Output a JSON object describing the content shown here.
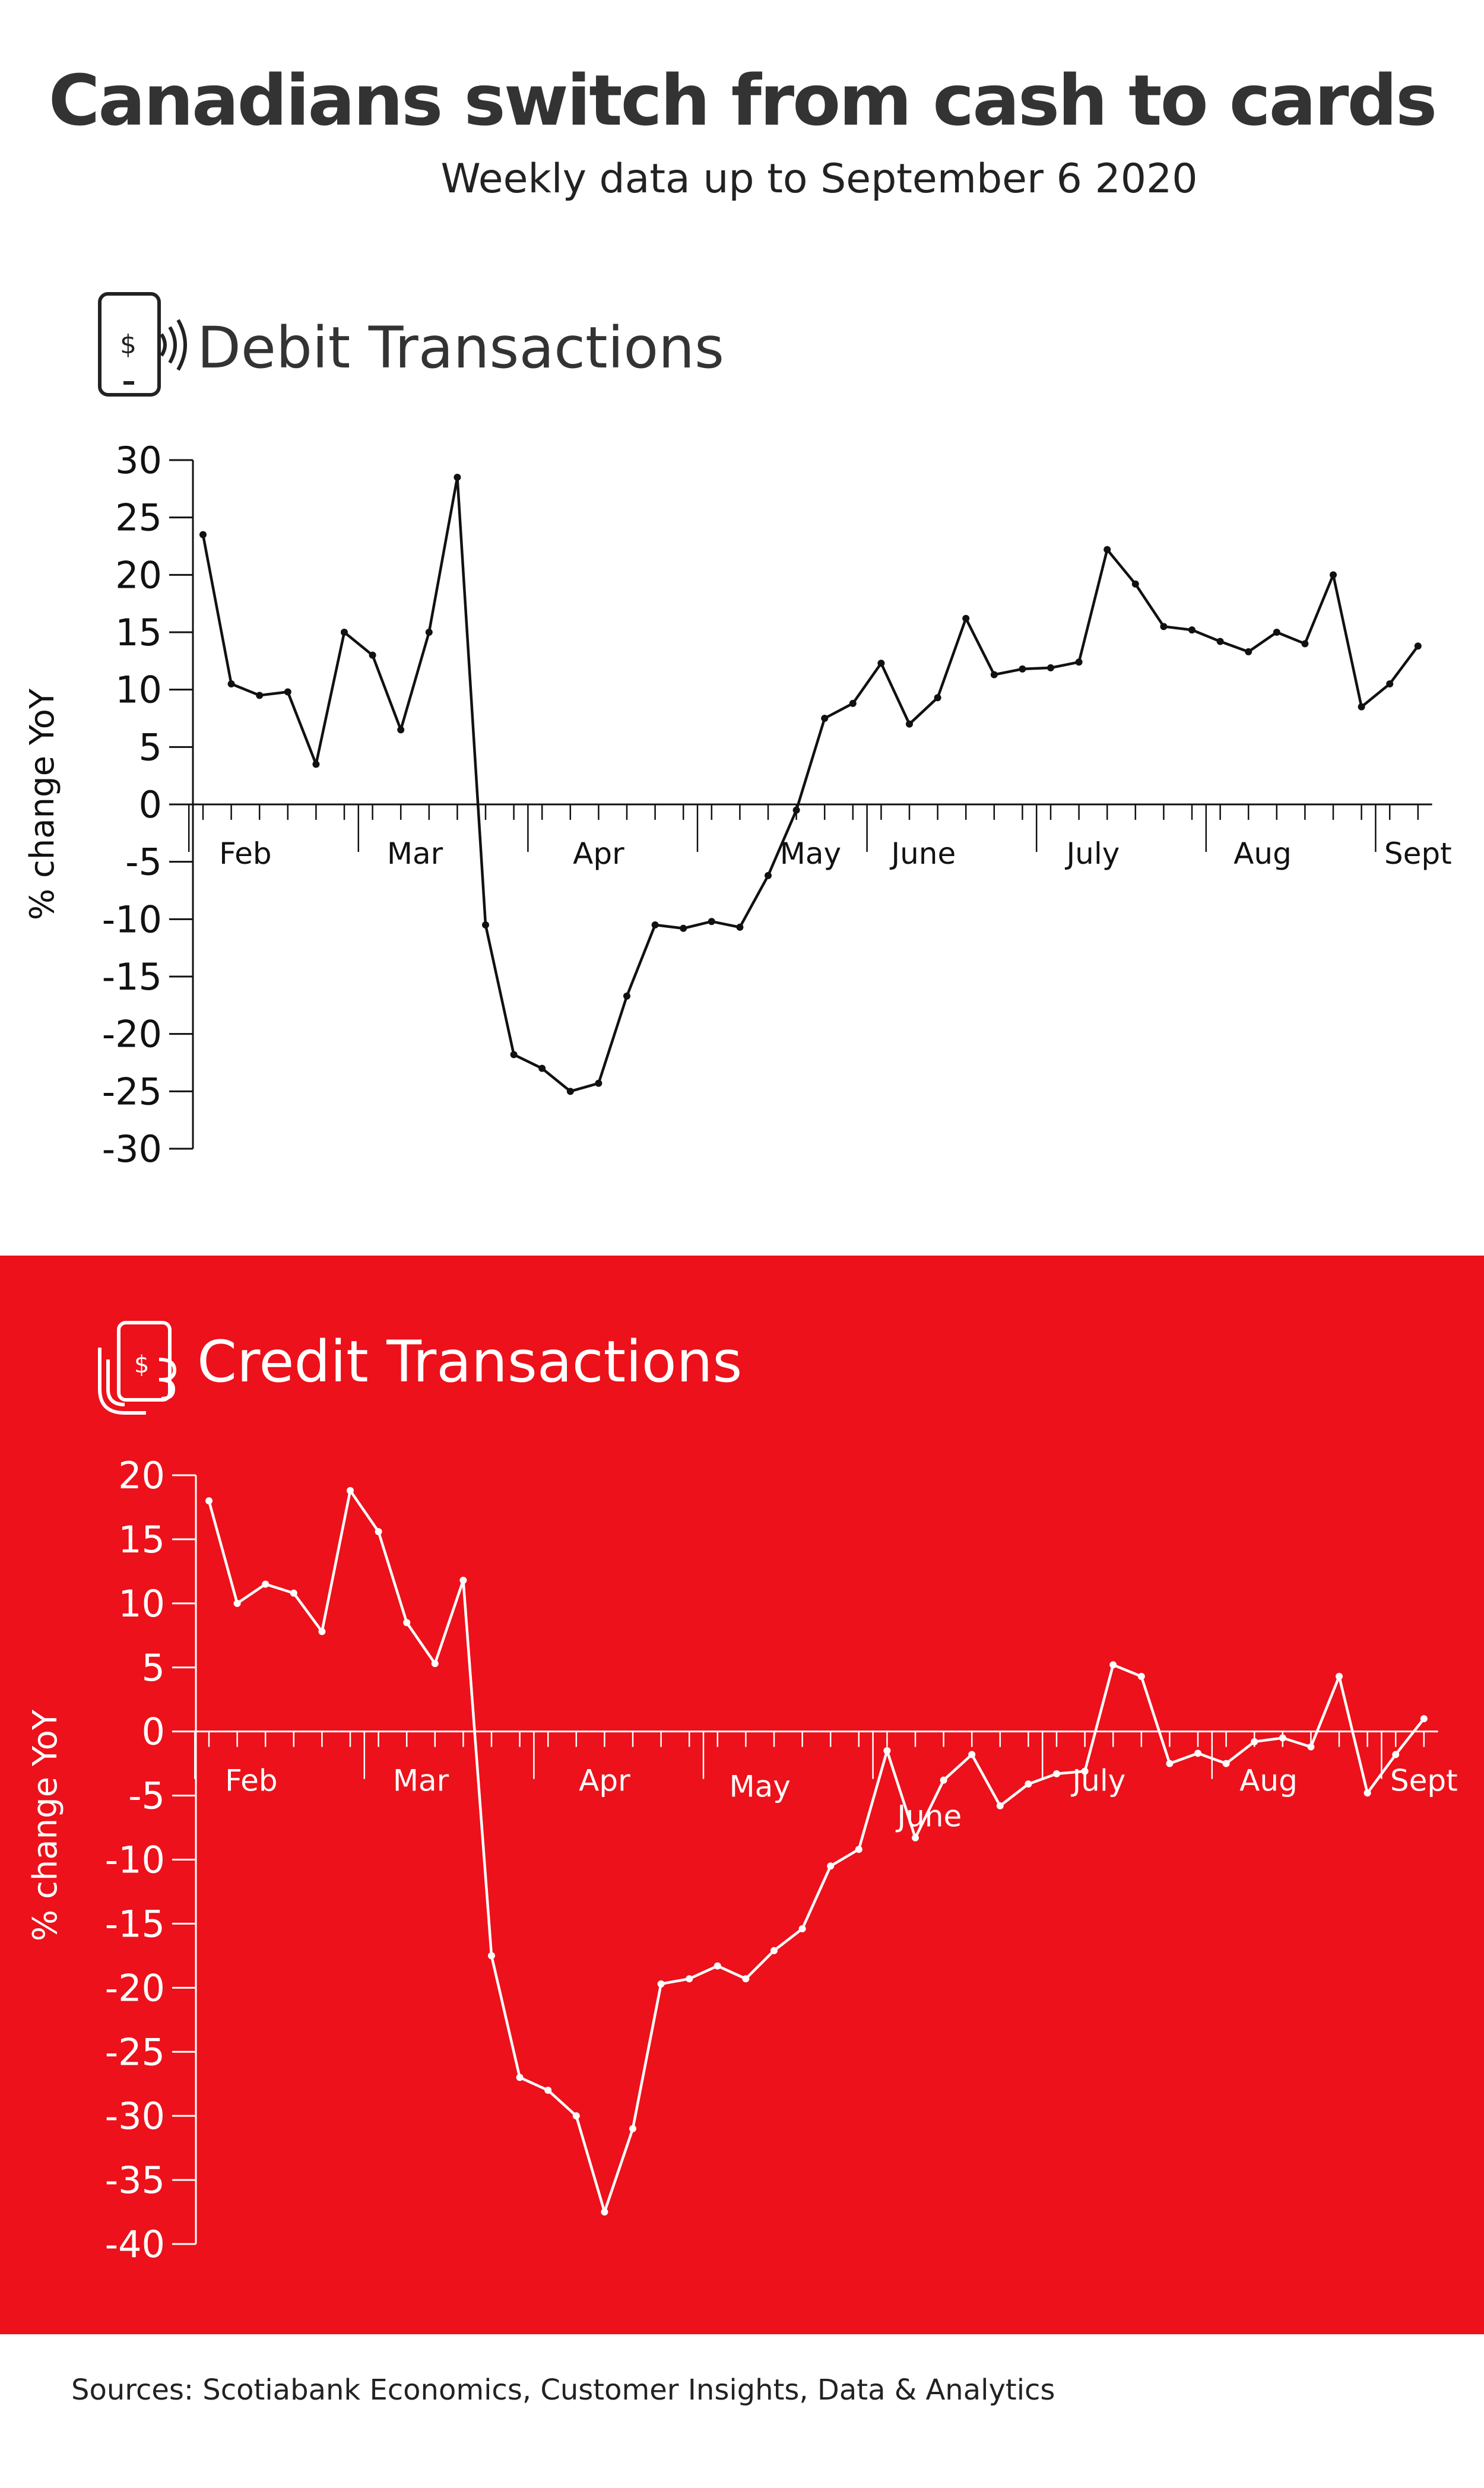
{
  "title": "Canadians switch from cash to cards",
  "subtitle": "Weekly data up to September 6 2020",
  "sources": "Sources: Scotiabank Economics, Customer Insights, Data & Analytics",
  "colors": {
    "accent_red": "#ec111a",
    "debit_line": "#111111",
    "credit_line": "#ffffff"
  },
  "icons": {
    "debit": "contactless-phone-icon",
    "credit": "hand-holding-phone-icon"
  },
  "chart_data": [
    {
      "type": "line",
      "title": "Debit Transactions",
      "ylabel": "% change YoY",
      "xlabel": "",
      "ylim": [
        -30,
        30
      ],
      "yticks": [
        30,
        25,
        20,
        15,
        10,
        5,
        0,
        -5,
        -10,
        -15,
        -20,
        -25,
        -30
      ],
      "month_labels": [
        "Feb",
        "Mar",
        "Apr",
        "May",
        "June",
        "July",
        "Aug",
        "Sept"
      ],
      "month_label_week": [
        1.5,
        7.5,
        14,
        21.5,
        25.5,
        31.5,
        37.5,
        43
      ],
      "month_boundary_week": [
        -0.5,
        5.5,
        11.5,
        17.5,
        23.5,
        29.5,
        35.5,
        41.5
      ],
      "weeks": 44,
      "series": [
        {
          "values": [
            23.5,
            10.5,
            9.5,
            9.8,
            3.5,
            15,
            13,
            6.5,
            15,
            28.5,
            -10.5,
            -21.8,
            -23,
            -25,
            -24.3,
            -16.7,
            -10.5,
            -10.8,
            -10.2,
            -10.7,
            -6.2,
            -0.5,
            7.5,
            8.8,
            12.3,
            7,
            9.3,
            16.2,
            11.3,
            11.8,
            11.9,
            12.4,
            22.2,
            19.2,
            15.5,
            15.2,
            14.2,
            13.3,
            15,
            14,
            20,
            8.5,
            10.5,
            13.8
          ]
        }
      ]
    },
    {
      "type": "line",
      "title": "Credit Transactions",
      "ylabel": "% change YoY",
      "xlabel": "",
      "ylim": [
        -40,
        20
      ],
      "yticks": [
        20,
        15,
        10,
        5,
        0,
        -5,
        -10,
        -15,
        -20,
        -25,
        -30,
        -35,
        -40
      ],
      "month_labels": [
        "Feb",
        "Mar",
        "Apr",
        "May",
        "June",
        "July",
        "Aug",
        "Sept"
      ],
      "month_label_week": [
        1.5,
        7.5,
        14,
        19.5,
        25.5,
        31.5,
        37.5,
        43
      ],
      "month_boundary_week": [
        -0.5,
        5.5,
        11.5,
        17.5,
        23.5,
        29.5,
        35.5,
        41.5
      ],
      "weeks": 44,
      "series": [
        {
          "values": [
            18,
            10,
            11.5,
            10.8,
            7.8,
            18.8,
            15.6,
            8.5,
            5.3,
            11.8,
            -17.5,
            -27,
            -28,
            -30,
            -37.5,
            -31,
            -19.7,
            -19.3,
            -18.3,
            -19.3,
            -17.1,
            -15.4,
            -10.5,
            -9.2,
            -1.5,
            -8.3,
            -3.8,
            -1.8,
            -5.8,
            -4.1,
            -3.3,
            -3.1,
            5.2,
            4.3,
            -2.5,
            -1.7,
            -2.5,
            -0.8,
            -0.5,
            -1.2,
            4.3,
            -4.8,
            -1.8,
            1
          ]
        }
      ]
    }
  ]
}
